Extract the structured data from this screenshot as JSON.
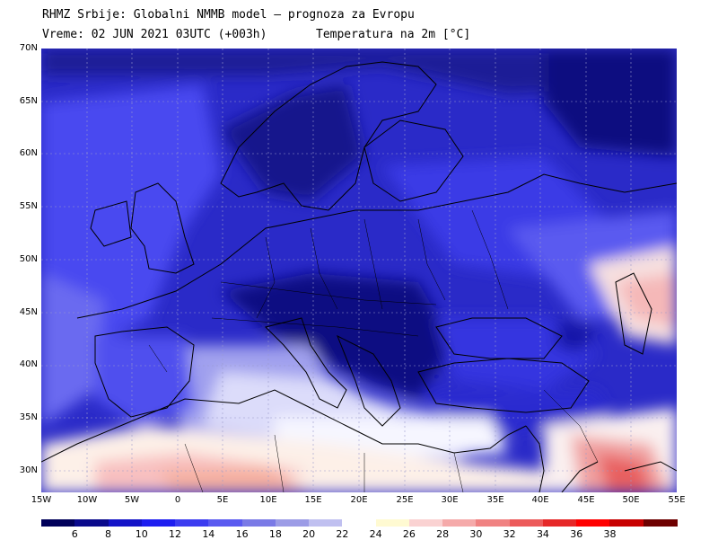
{
  "header": {
    "line1": "RHMZ Srbije: Globalni NMMB model — prognoza za Evropu",
    "line2": "Vreme: 02 JUN 2021 03UTC (+003h)",
    "line3": "Temperatura na 2m [°C]"
  },
  "axes": {
    "lat_labels": [
      "70N",
      "65N",
      "60N",
      "55N",
      "50N",
      "45N",
      "40N",
      "35N",
      "30N"
    ],
    "lon_labels": [
      "15W",
      "10W",
      "5W",
      "0",
      "5E",
      "10E",
      "15E",
      "20E",
      "25E",
      "30E",
      "35E",
      "40E",
      "45E",
      "50E",
      "55E"
    ]
  },
  "colorbar": {
    "levels": [
      "6",
      "8",
      "10",
      "12",
      "14",
      "16",
      "18",
      "20",
      "22",
      "24",
      "26",
      "28",
      "30",
      "32",
      "34",
      "36",
      "38"
    ],
    "colors": [
      "#00005a",
      "#0a0a8c",
      "#1414c8",
      "#1e1ef0",
      "#3c3cf0",
      "#5a5af0",
      "#7a7ae6",
      "#9c9ce6",
      "#c0c0f0",
      "#ffffff",
      "#fffad2",
      "#fad2d2",
      "#f5aaaa",
      "#f08282",
      "#ec5a5a",
      "#e62828",
      "#ff0000",
      "#c80000",
      "#6e0000"
    ]
  }
}
